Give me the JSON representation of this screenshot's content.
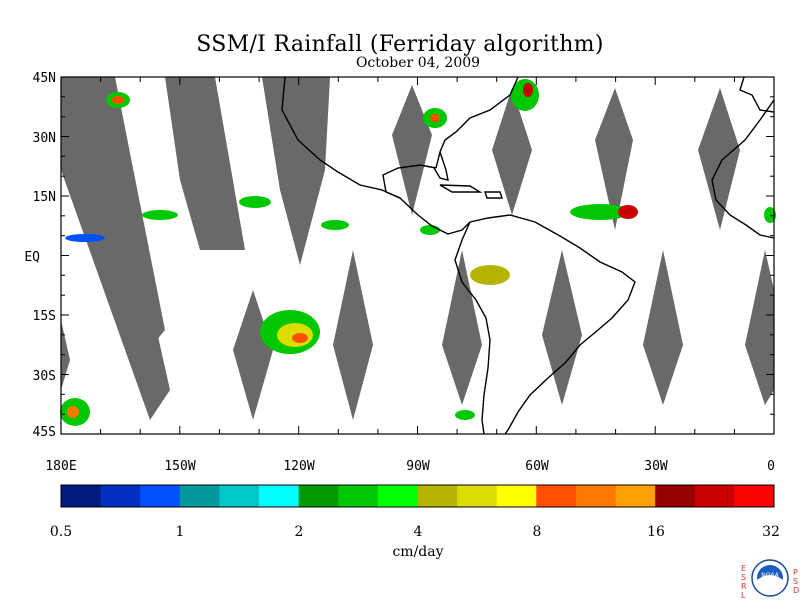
{
  "title": "SSM/I Rainfall (Ferriday algorithm)",
  "subtitle": "October 04, 2009",
  "map": {
    "lat_labels": [
      "45N",
      "30N",
      "15N",
      "EQ",
      "15S",
      "30S",
      "45S"
    ],
    "lon_labels": [
      "180E",
      "150W",
      "120W",
      "90W",
      "60W",
      "30W",
      "0"
    ],
    "lon_range": [
      -180,
      0
    ],
    "lat_range": [
      -45,
      45
    ],
    "no_data_color": "#696969",
    "coast_color": "#000000"
  },
  "colorbar": {
    "colors": [
      "#001a80",
      "#0030c0",
      "#0050ff",
      "#009999",
      "#00c8c8",
      "#00ffff",
      "#009900",
      "#00c800",
      "#00ff00",
      "#b4b400",
      "#dcdc00",
      "#ffff00",
      "#ff5000",
      "#ff7800",
      "#ffa000",
      "#960000",
      "#c80000",
      "#ff0000"
    ],
    "tick_labels": [
      "0.5",
      "1",
      "2",
      "4",
      "8",
      "16",
      "32"
    ],
    "unit": "cm/day"
  },
  "logo": {
    "left_letters": "ESRL",
    "right_letters": "PSD",
    "center_text": "NOAA"
  }
}
